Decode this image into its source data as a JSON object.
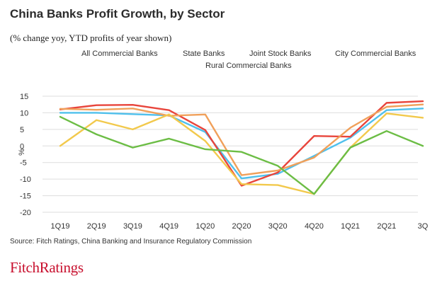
{
  "title": "China Banks Profit Growth, by Sector",
  "subtitle": "(% change yoy, YTD profits of year shown)",
  "source": "Source: Fitch Ratings, China Banking and Insurance Regulatory Commission",
  "logo_text": "FitchRatings",
  "chart_data": {
    "type": "line",
    "categories": [
      "1Q19",
      "2Q19",
      "3Q19",
      "4Q19",
      "1Q20",
      "2Q20",
      "3Q20",
      "4Q20",
      "1Q21",
      "2Q21",
      "3Q"
    ],
    "ylabel": "%",
    "ylim": [
      -20,
      15
    ],
    "yticks": [
      15,
      10,
      5,
      0,
      -5,
      -10,
      -15,
      -20
    ],
    "grid": "horizontal",
    "legend_position": "top",
    "series": [
      {
        "name": "All Commercial Banks",
        "color": "#4fc0ec",
        "values": [
          10.0,
          10.0,
          9.6,
          9.2,
          4.2,
          -9.8,
          -8.4,
          -3.0,
          2.5,
          10.8,
          11.3
        ]
      },
      {
        "name": "State Banks",
        "color": "#e8453c",
        "values": [
          11.0,
          12.3,
          12.4,
          10.8,
          4.8,
          -12.0,
          -8.0,
          3.0,
          2.8,
          13.0,
          13.5
        ]
      },
      {
        "name": "Joint Stock Banks",
        "color": "#f0a05a",
        "values": [
          11.2,
          10.9,
          11.3,
          9.1,
          9.5,
          -8.8,
          -7.4,
          -3.5,
          5.5,
          11.8,
          12.5
        ]
      },
      {
        "name": "City Commercial Banks",
        "color": "#f2c94c",
        "values": [
          0.0,
          7.8,
          5.0,
          9.5,
          1.5,
          -11.5,
          -11.8,
          -14.5,
          -0.5,
          9.8,
          8.5
        ]
      },
      {
        "name": "Rural Commercial Banks",
        "color": "#6cbd45",
        "values": [
          8.8,
          3.5,
          -0.5,
          2.2,
          -1.0,
          -1.8,
          -6.0,
          -14.5,
          -0.5,
          4.5,
          0.0
        ]
      }
    ]
  }
}
